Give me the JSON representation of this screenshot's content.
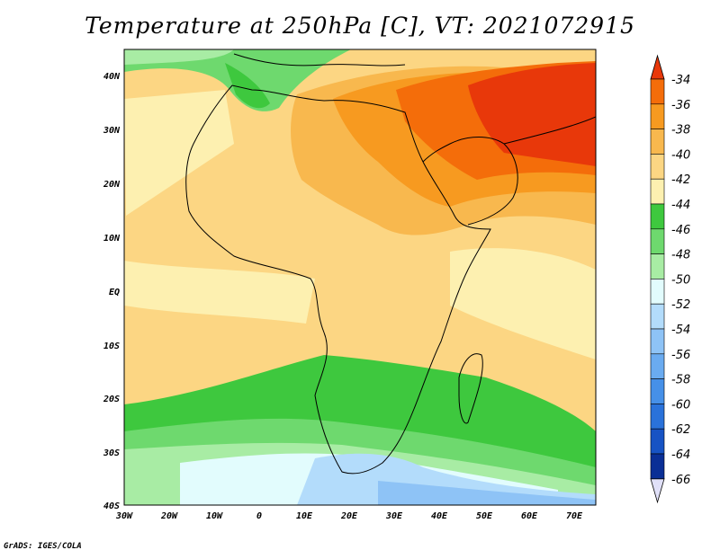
{
  "title": "Temperature at 250hPa [C], VT: 2021072915",
  "credit": "GrADS: IGES/COLA",
  "map": {
    "lat_ticks": [
      "40N",
      "30N",
      "20N",
      "10N",
      "EQ",
      "10S",
      "20S",
      "30S",
      "40S"
    ],
    "lon_ticks": [
      "30W",
      "20W",
      "10W",
      "0",
      "10E",
      "20E",
      "30E",
      "40E",
      "50E",
      "60E",
      "70E"
    ]
  },
  "colorbar": {
    "labels": [
      "-34",
      "-36",
      "-38",
      "-40",
      "-42",
      "-44",
      "-46",
      "-48",
      "-50",
      "-52",
      "-54",
      "-56",
      "-58",
      "-60",
      "-62",
      "-64",
      "-66"
    ],
    "colors": [
      "#e8380a",
      "#f46d0a",
      "#f79a20",
      "#f8b84e",
      "#fcd683",
      "#fdf0b0",
      "#3ec83e",
      "#6ed96e",
      "#a8eca4",
      "#e2fcfd",
      "#b3dcfb",
      "#8ec3f6",
      "#6aabf0",
      "#4690e8",
      "#2a72da",
      "#1753c4",
      "#0a2f96",
      "#050a6b"
    ],
    "top_arrow_color": "#e8380a",
    "bottom_arrow_color": "#e0e0f8"
  }
}
